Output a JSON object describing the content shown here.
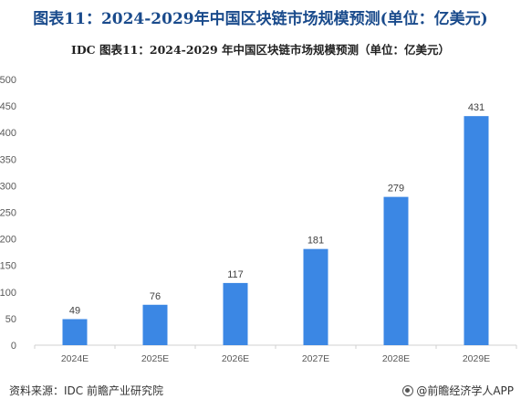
{
  "page_title": "图表11：2024-2029年中国区块链市场规模预测(单位：亿美元)",
  "footer": {
    "source": "资料来源：IDC 前瞻产业研究院",
    "brand": "@前瞻经济学人APP"
  },
  "colors": {
    "bar": "#3b87e4",
    "title": "#1a4b8c",
    "axis_text": "#595959"
  },
  "chart_data": {
    "type": "bar",
    "title": "IDC  图表11：2024-2029 年中国区块链市场规模预测（单位：亿美元）",
    "categories": [
      "2024E",
      "2025E",
      "2026E",
      "2027E",
      "2028E",
      "2029E"
    ],
    "values": [
      49,
      76,
      117,
      181,
      279,
      431
    ],
    "data_labels": [
      "49",
      "76",
      "117",
      "181",
      "279",
      "431"
    ],
    "y_ticks": [
      "0",
      "50",
      "100",
      "150",
      "200",
      "250",
      "300",
      "350",
      "400",
      "450",
      "500"
    ],
    "ylim": [
      0,
      500
    ],
    "xlabel": "",
    "ylabel": "",
    "grid": false,
    "legend": "none"
  }
}
